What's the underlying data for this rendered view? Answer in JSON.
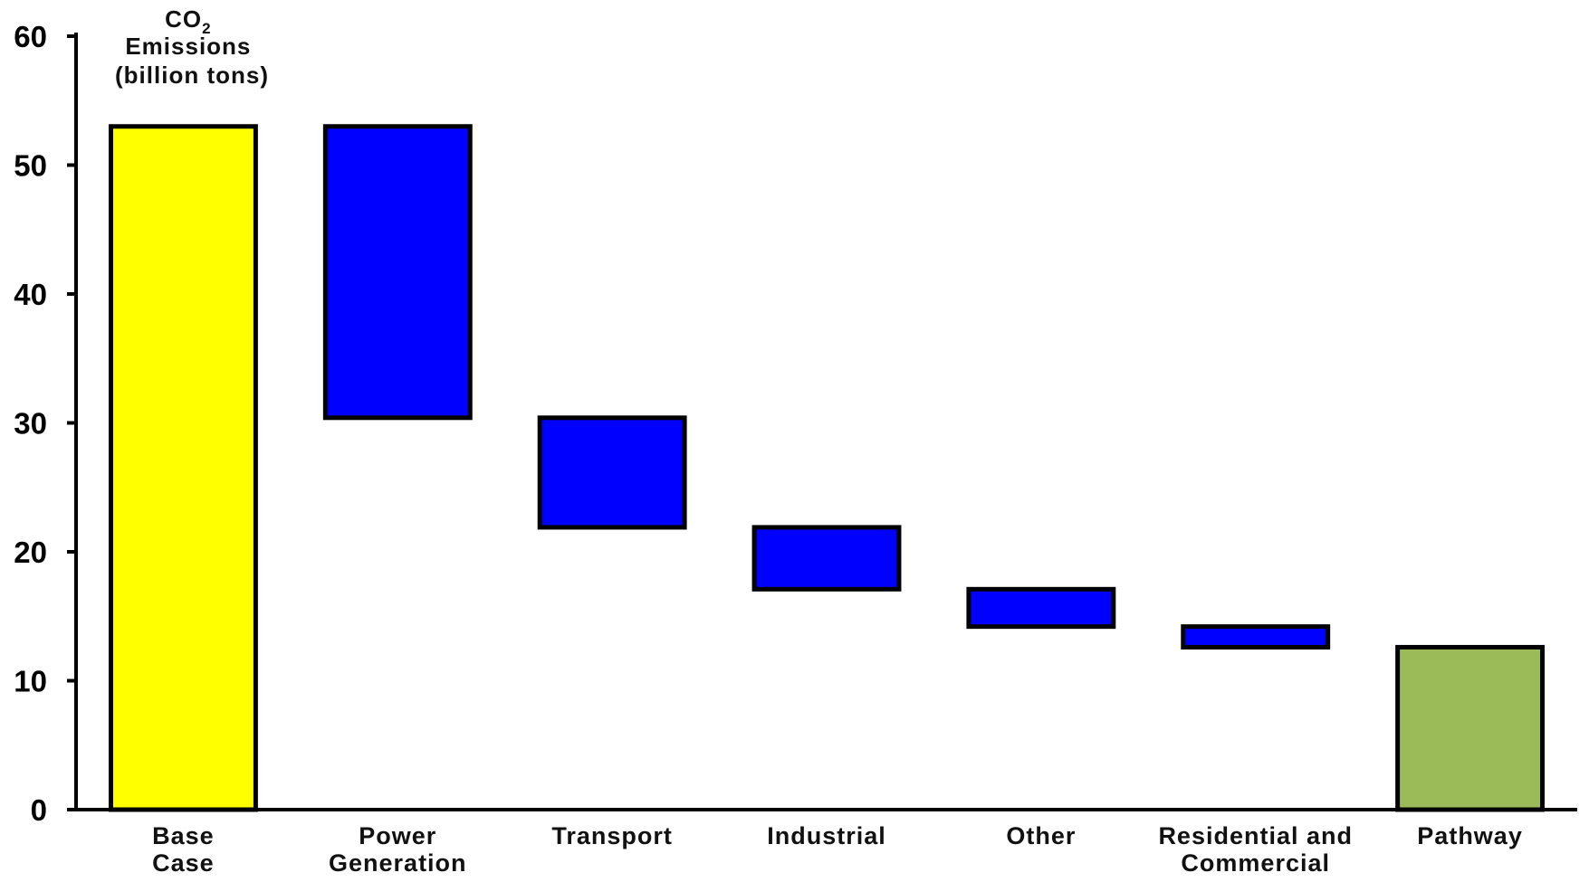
{
  "chart_data": {
    "type": "bar",
    "subtype": "waterfall",
    "title": "",
    "ylabel": {
      "line1": "CO",
      "line1_subscript": "2",
      "line2": "Emissions",
      "line3": "(billion tons)"
    },
    "xlabel": "",
    "ylim": [
      0,
      60
    ],
    "yticks": [
      0,
      10,
      20,
      30,
      40,
      50,
      60
    ],
    "grid": false,
    "legend": "none",
    "categories": [
      [
        "Base",
        "Case"
      ],
      [
        "Power",
        "Generation"
      ],
      [
        "Transport"
      ],
      [
        "Industrial"
      ],
      [
        "Other"
      ],
      [
        "Residential and",
        "Commercial"
      ],
      [
        "Pathway"
      ]
    ],
    "bars": [
      {
        "category": "Base Case",
        "kind": "total",
        "start": 0,
        "end": 53,
        "color": "#ffff00"
      },
      {
        "category": "Power Generation",
        "kind": "decrease",
        "start": 53,
        "end": 30.4,
        "color": "#0000ff"
      },
      {
        "category": "Transport",
        "kind": "decrease",
        "start": 30.4,
        "end": 21.9,
        "color": "#0000ff"
      },
      {
        "category": "Industrial",
        "kind": "decrease",
        "start": 21.9,
        "end": 17.1,
        "color": "#0000ff"
      },
      {
        "category": "Other",
        "kind": "decrease",
        "start": 17.1,
        "end": 14.2,
        "color": "#0000ff"
      },
      {
        "category": "Residential and Commercial",
        "kind": "decrease",
        "start": 14.2,
        "end": 12.6,
        "color": "#0000ff"
      },
      {
        "category": "Pathway",
        "kind": "total",
        "start": 0,
        "end": 12.6,
        "color": "#9bbb59"
      }
    ]
  }
}
